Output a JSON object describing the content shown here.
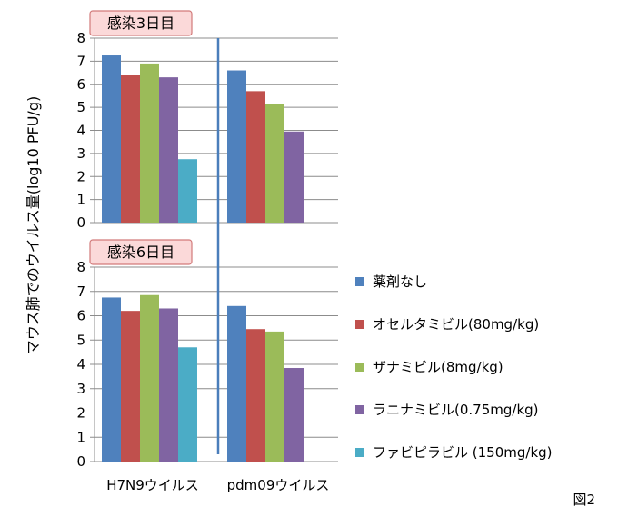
{
  "chart_data": {
    "type": "bar",
    "ylabel": "マウス肺でのウイルス量(log10 PFU/g)",
    "categories": [
      "H7N9ウイルス",
      "pdm09ウイルス"
    ],
    "ylim": [
      0,
      8
    ],
    "yticks": [
      "0",
      "1",
      "2",
      "3",
      "4",
      "5",
      "6",
      "7",
      "8"
    ],
    "grid": true,
    "legend_position": "right",
    "figure_label": "図2",
    "series_names": [
      "薬剤なし",
      "オセルタミビル(80mg/kg)",
      "ザナミビル(8mg/kg)",
      "ラニナミビル(0.75mg/kg)",
      "ファビピラビル (150mg/kg)"
    ],
    "series_colors": [
      "#4F81BD",
      "#C0504D",
      "#9BBB59",
      "#8064A2",
      "#4BACC6"
    ],
    "panels": [
      {
        "title": "感染3日目",
        "values": [
          [
            7.25,
            6.4,
            6.9,
            6.3,
            2.75
          ],
          [
            6.6,
            5.7,
            5.15,
            3.95,
            null
          ]
        ]
      },
      {
        "title": "感染6日目",
        "values": [
          [
            6.75,
            6.2,
            6.85,
            6.3,
            4.7
          ],
          [
            6.4,
            5.45,
            5.35,
            3.85,
            null
          ]
        ]
      }
    ]
  }
}
